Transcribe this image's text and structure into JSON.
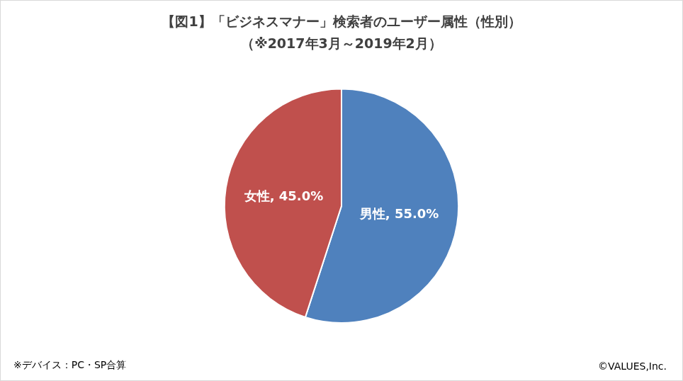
{
  "chart_data": {
    "type": "pie",
    "title": "【図1】「ビジネスマナー」検索者のユーザー属性（性別）",
    "subtitle": "（※2017年3月～2019年2月）",
    "categories": [
      "男性",
      "女性"
    ],
    "values": [
      55.0,
      45.0
    ],
    "value_labels": [
      "男性, 55.0%",
      "女性, 45.0%"
    ],
    "colors": [
      "#4f81bd",
      "#c0504d"
    ],
    "data_labels": true,
    "annotations": [
      "※デバイス：PC・SP合算",
      "©VALUES,Inc."
    ]
  }
}
